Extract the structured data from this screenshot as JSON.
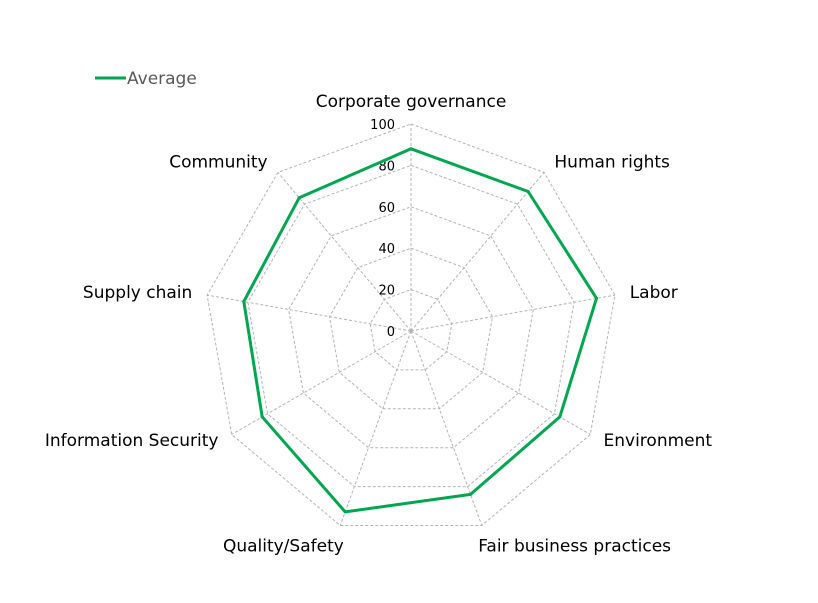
{
  "chart_data": {
    "type": "radar",
    "categories": [
      "Corporate governance",
      "Human rights",
      "Labor",
      "Environment",
      "Fair business practices",
      "Quality/Safety",
      "Information Security",
      "Supply chain",
      "Community"
    ],
    "series": [
      {
        "name": "Average",
        "color": "#00a650",
        "values": [
          88,
          88,
          91,
          83,
          84,
          93,
          83,
          82,
          84
        ]
      }
    ],
    "rlim": [
      0,
      100
    ],
    "ticks": [
      0,
      20,
      40,
      60,
      80,
      100
    ],
    "tick_labels": [
      "0",
      "20",
      "40",
      "60",
      "80",
      "100"
    ],
    "grid": true,
    "legend_position": "top-left"
  }
}
